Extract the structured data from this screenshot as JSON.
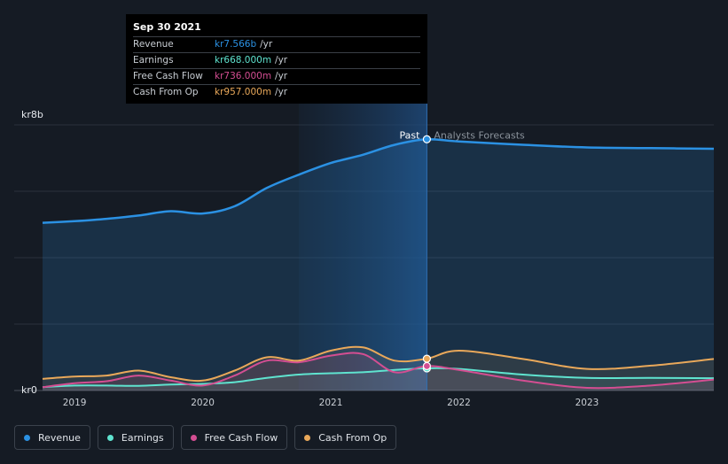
{
  "tooltip": {
    "date": "Sep 30 2021",
    "rows": [
      {
        "label": "Revenue",
        "value": "kr7.566b",
        "unit": "/yr",
        "color": "#2b91e3"
      },
      {
        "label": "Earnings",
        "value": "kr668.000m",
        "unit": "/yr",
        "color": "#5fe3cf"
      },
      {
        "label": "Free Cash Flow",
        "value": "kr736.000m",
        "unit": "/yr",
        "color": "#d44e92"
      },
      {
        "label": "Cash From Op",
        "value": "kr957.000m",
        "unit": "/yr",
        "color": "#e9a85a"
      }
    ]
  },
  "labels": {
    "past": "Past",
    "forecast": "Analysts Forecasts"
  },
  "legend": [
    {
      "label": "Revenue",
      "color": "#2b91e3"
    },
    {
      "label": "Earnings",
      "color": "#5fe3cf"
    },
    {
      "label": "Free Cash Flow",
      "color": "#d44e92"
    },
    {
      "label": "Cash From Op",
      "color": "#e9a85a"
    }
  ],
  "chart_data": {
    "type": "line",
    "y_unit": "SEK billions",
    "ylim": [
      0,
      8
    ],
    "y_tick_labels": [
      {
        "value": 8,
        "label": "kr8b"
      },
      {
        "value": 0,
        "label": "kr0"
      }
    ],
    "xlim": [
      2018.75,
      2023.99
    ],
    "x_ticks": [
      2019,
      2020,
      2021,
      2022,
      2023
    ],
    "grid": true,
    "past_forecast_split": 2021.75,
    "highlight_start": 2020.75,
    "series": [
      {
        "name": "Revenue",
        "color": "#2b91e3",
        "points": [
          [
            2018.75,
            5.05
          ],
          [
            2019.0,
            5.1
          ],
          [
            2019.25,
            5.17
          ],
          [
            2019.5,
            5.27
          ],
          [
            2019.75,
            5.4
          ],
          [
            2020.0,
            5.33
          ],
          [
            2020.25,
            5.55
          ],
          [
            2020.5,
            6.1
          ],
          [
            2020.75,
            6.5
          ],
          [
            2021.0,
            6.85
          ],
          [
            2021.25,
            7.1
          ],
          [
            2021.5,
            7.4
          ],
          [
            2021.75,
            7.566
          ],
          [
            2022.0,
            7.5
          ],
          [
            2022.5,
            7.4
          ],
          [
            2023.0,
            7.32
          ],
          [
            2023.5,
            7.3
          ],
          [
            2023.99,
            7.28
          ]
        ]
      },
      {
        "name": "Earnings",
        "color": "#5fe3cf",
        "points": [
          [
            2018.75,
            0.1
          ],
          [
            2019.0,
            0.15
          ],
          [
            2019.25,
            0.15
          ],
          [
            2019.5,
            0.14
          ],
          [
            2019.75,
            0.18
          ],
          [
            2020.0,
            0.2
          ],
          [
            2020.25,
            0.25
          ],
          [
            2020.5,
            0.38
          ],
          [
            2020.75,
            0.48
          ],
          [
            2021.0,
            0.52
          ],
          [
            2021.25,
            0.55
          ],
          [
            2021.5,
            0.62
          ],
          [
            2021.75,
            0.668
          ],
          [
            2022.0,
            0.65
          ],
          [
            2022.5,
            0.48
          ],
          [
            2023.0,
            0.38
          ],
          [
            2023.5,
            0.38
          ],
          [
            2023.99,
            0.37
          ]
        ]
      },
      {
        "name": "Free Cash Flow",
        "color": "#d44e92",
        "points": [
          [
            2018.75,
            0.1
          ],
          [
            2019.0,
            0.22
          ],
          [
            2019.25,
            0.28
          ],
          [
            2019.5,
            0.45
          ],
          [
            2019.75,
            0.3
          ],
          [
            2020.0,
            0.15
          ],
          [
            2020.25,
            0.45
          ],
          [
            2020.5,
            0.9
          ],
          [
            2020.75,
            0.85
          ],
          [
            2021.0,
            1.05
          ],
          [
            2021.25,
            1.1
          ],
          [
            2021.5,
            0.55
          ],
          [
            2021.75,
            0.736
          ],
          [
            2022.0,
            0.62
          ],
          [
            2022.5,
            0.3
          ],
          [
            2023.0,
            0.08
          ],
          [
            2023.5,
            0.15
          ],
          [
            2023.99,
            0.33
          ]
        ]
      },
      {
        "name": "Cash From Op",
        "color": "#e9a85a",
        "points": [
          [
            2018.75,
            0.35
          ],
          [
            2019.0,
            0.42
          ],
          [
            2019.25,
            0.45
          ],
          [
            2019.5,
            0.6
          ],
          [
            2019.75,
            0.4
          ],
          [
            2020.0,
            0.3
          ],
          [
            2020.25,
            0.6
          ],
          [
            2020.5,
            1.0
          ],
          [
            2020.75,
            0.9
          ],
          [
            2021.0,
            1.2
          ],
          [
            2021.25,
            1.3
          ],
          [
            2021.5,
            0.9
          ],
          [
            2021.75,
            0.957
          ],
          [
            2022.0,
            1.2
          ],
          [
            2022.5,
            0.95
          ],
          [
            2023.0,
            0.65
          ],
          [
            2023.5,
            0.75
          ],
          [
            2023.99,
            0.95
          ]
        ]
      }
    ]
  }
}
